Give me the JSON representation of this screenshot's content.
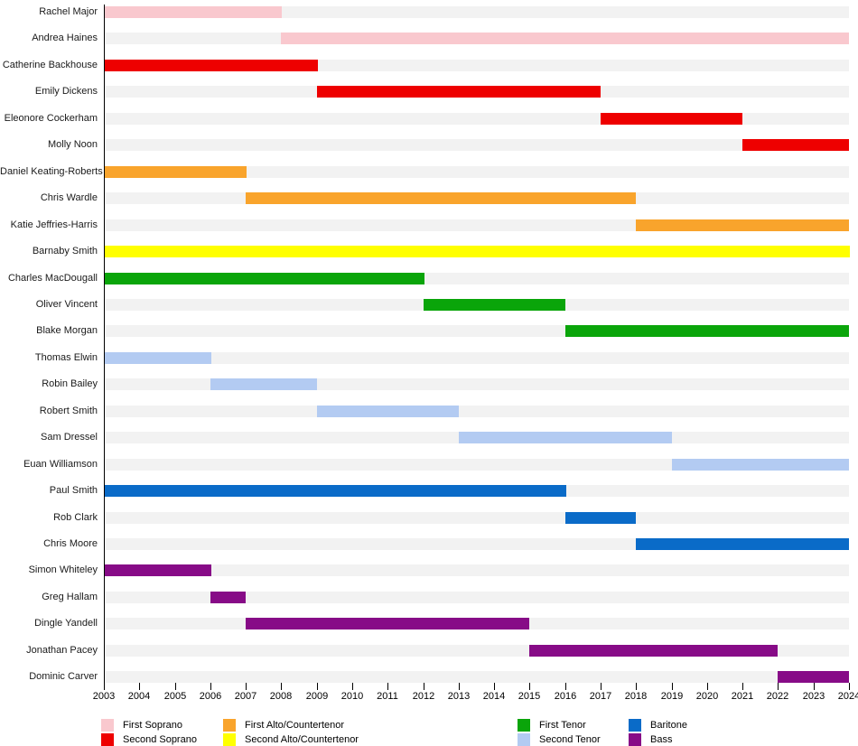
{
  "chart_data": {
    "type": "bar",
    "variant": "horizontal-timeline-gantt",
    "title": "",
    "xlabel": "",
    "ylabel": "",
    "xlim": [
      2003,
      2024
    ],
    "grid": false,
    "legend_position": "bottom",
    "x_ticks": [
      2003,
      2004,
      2005,
      2006,
      2007,
      2008,
      2009,
      2010,
      2011,
      2012,
      2013,
      2014,
      2015,
      2016,
      2017,
      2018,
      2019,
      2020,
      2021,
      2022,
      2023,
      2024
    ],
    "parts": {
      "First Soprano": "#F9C8CE",
      "Second Soprano": "#EE0000",
      "First Alto/Countertenor": "#F9A42C",
      "Second Alto/Countertenor": "#FFFF00",
      "First Tenor": "#0AA50A",
      "Second Tenor": "#B3CBF2",
      "Baritone": "#0A6BC8",
      "Bass": "#870B87"
    },
    "track_color": "#F2F2F2",
    "rows": [
      {
        "name": "Rachel Major",
        "part": "First Soprano",
        "start": 2003,
        "end": 2008
      },
      {
        "name": "Andrea Haines",
        "part": "First Soprano",
        "start": 2008,
        "end": 2024
      },
      {
        "name": "Catherine Backhouse",
        "part": "Second Soprano",
        "start": 2003,
        "end": 2009
      },
      {
        "name": "Emily Dickens",
        "part": "Second Soprano",
        "start": 2009,
        "end": 2017
      },
      {
        "name": "Eleonore Cockerham",
        "part": "Second Soprano",
        "start": 2017,
        "end": 2021
      },
      {
        "name": "Molly Noon",
        "part": "Second Soprano",
        "start": 2021,
        "end": 2024
      },
      {
        "name": "Daniel Keating-Roberts",
        "part": "First Alto/Countertenor",
        "start": 2003,
        "end": 2007
      },
      {
        "name": "Chris Wardle",
        "part": "First Alto/Countertenor",
        "start": 2007,
        "end": 2018
      },
      {
        "name": "Katie Jeffries-Harris",
        "part": "First Alto/Countertenor",
        "start": 2018,
        "end": 2024
      },
      {
        "name": "Barnaby Smith",
        "part": "Second Alto/Countertenor",
        "start": 2003,
        "end": 2024
      },
      {
        "name": "Charles MacDougall",
        "part": "First Tenor",
        "start": 2003,
        "end": 2012
      },
      {
        "name": "Oliver Vincent",
        "part": "First Tenor",
        "start": 2012,
        "end": 2016
      },
      {
        "name": "Blake Morgan",
        "part": "First Tenor",
        "start": 2016,
        "end": 2024
      },
      {
        "name": "Thomas Elwin",
        "part": "Second Tenor",
        "start": 2003,
        "end": 2006
      },
      {
        "name": "Robin Bailey",
        "part": "Second Tenor",
        "start": 2006,
        "end": 2009
      },
      {
        "name": "Robert Smith",
        "part": "Second Tenor",
        "start": 2009,
        "end": 2013
      },
      {
        "name": "Sam Dressel",
        "part": "Second Tenor",
        "start": 2013,
        "end": 2019
      },
      {
        "name": "Euan Williamson",
        "part": "Second Tenor",
        "start": 2019,
        "end": 2024
      },
      {
        "name": "Paul Smith",
        "part": "Baritone",
        "start": 2003,
        "end": 2016
      },
      {
        "name": "Rob Clark",
        "part": "Baritone",
        "start": 2016,
        "end": 2018
      },
      {
        "name": "Chris Moore",
        "part": "Baritone",
        "start": 2018,
        "end": 2024
      },
      {
        "name": "Simon Whiteley",
        "part": "Bass",
        "start": 2003,
        "end": 2006
      },
      {
        "name": "Greg Hallam",
        "part": "Bass",
        "start": 2006,
        "end": 2007
      },
      {
        "name": "Dingle Yandell",
        "part": "Bass",
        "start": 2007,
        "end": 2015
      },
      {
        "name": "Jonathan Pacey",
        "part": "Bass",
        "start": 2015,
        "end": 2022
      },
      {
        "name": "Dominic Carver",
        "part": "Bass",
        "start": 2022,
        "end": 2024
      }
    ],
    "legend_columns": [
      [
        "First Soprano",
        "Second Soprano"
      ],
      [
        "First Alto/Countertenor",
        "Second Alto/Countertenor"
      ],
      [
        "First Tenor",
        "Second Tenor"
      ],
      [
        "Baritone",
        "Bass"
      ]
    ]
  }
}
